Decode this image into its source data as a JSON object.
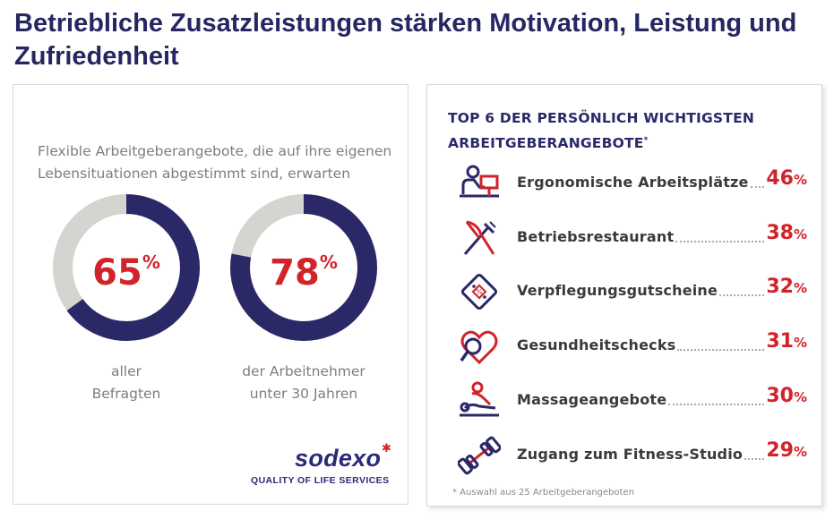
{
  "headline": "Betriebliche Zusatzleistungen stärken Motivation, Leistung und Zufriedenheit",
  "left_card": {
    "intro_line1": "Flexible Arbeitgeberangebote, die auf ihre eigenen",
    "intro_line2": "Lebensituationen abgestimmt sind, erwarten",
    "logo_text": "sodexo",
    "logo_tagline": "QUALITY OF LIFE SERVICES"
  },
  "right_card": {
    "title_line1": "TOP 6 DER PERSÖNLICH WICHTIGSTEN",
    "title_line2": "ARBEITGEBERANGEBOTE",
    "title_mark": "*",
    "footnote": "*  Auswahl aus 25 Arbeitgeberangeboten"
  },
  "colors": {
    "navy": "#2b2868",
    "red": "#d2232a",
    "grey": "#d6d4d0",
    "title_blue": "#262662"
  },
  "chart_data": [
    {
      "type": "pie",
      "variant": "donut",
      "value": 65,
      "value_label": "65",
      "unit": "%",
      "caption_line1": "aller",
      "caption_line2": "Befragten"
    },
    {
      "type": "pie",
      "variant": "donut",
      "value": 78,
      "value_label": "78",
      "unit": "%",
      "caption_line1": "der Arbeitnehmer",
      "caption_line2": "unter 30 Jahren"
    },
    {
      "type": "table",
      "unit": "%",
      "rows": [
        {
          "label": "Ergonomische Arbeitsplätze",
          "value": 46,
          "value_label": "46",
          "icon": "desk-worker-icon"
        },
        {
          "label": "Betriebsrestaurant",
          "value": 38,
          "value_label": "38",
          "icon": "fork-knife-icon"
        },
        {
          "label": "Verpflegungsgutscheine",
          "value": 32,
          "value_label": "32",
          "icon": "voucher-icon"
        },
        {
          "label": "Gesundheitschecks",
          "value": 31,
          "value_label": "31",
          "icon": "heart-magnifier-icon"
        },
        {
          "label": "Massageangebote",
          "value": 30,
          "value_label": "30",
          "icon": "massage-icon"
        },
        {
          "label": "Zugang zum Fitness-Studio",
          "value": 29,
          "value_label": "29",
          "icon": "dumbbell-icon"
        }
      ]
    }
  ]
}
